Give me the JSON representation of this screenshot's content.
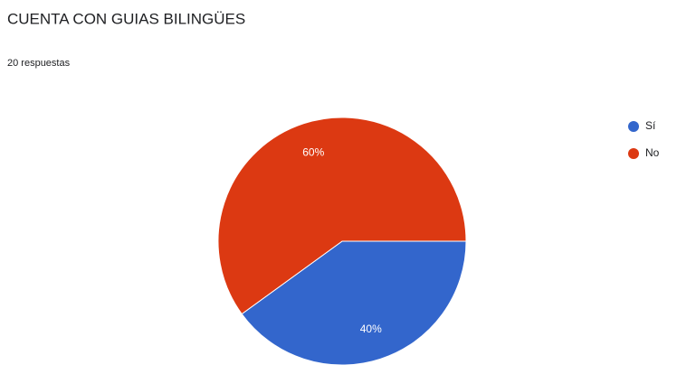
{
  "chart_data": {
    "type": "pie",
    "title": "CUENTA CON GUIAS BILINGÜES",
    "subtitle": "20 respuestas",
    "categories": [
      "Sí",
      "No"
    ],
    "values": [
      40,
      60
    ],
    "value_labels": [
      "40%",
      "60%"
    ],
    "colors": [
      "#3366cc",
      "#dc3912"
    ],
    "legend": "right"
  }
}
